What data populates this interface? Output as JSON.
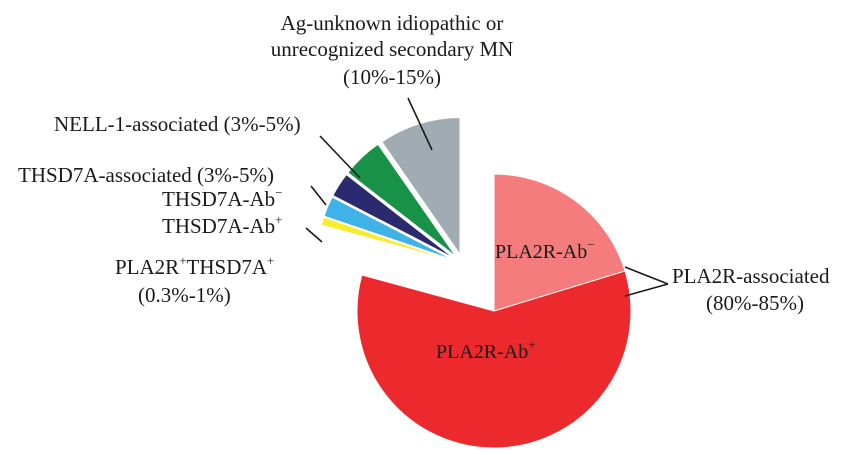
{
  "chart_data": {
    "type": "pie",
    "title": "",
    "slices": [
      {
        "key": "pla2r_ab_neg",
        "label": "PLA2R-Ab",
        "sup": "−",
        "value": 21,
        "color": "#f47c7c",
        "exploded": false
      },
      {
        "key": "pla2r_ab_pos",
        "label": "PLA2R-Ab",
        "sup": "+",
        "value": 61,
        "color": "#ec2a2e",
        "exploded": false
      },
      {
        "key": "pla2r_thsd7a_pos",
        "label": "PLA2R+THSD7A+",
        "value": 1,
        "color": "#f7ec2d",
        "exploded": true
      },
      {
        "key": "thsd7a_ab_pos",
        "label": "THSD7A-Ab",
        "sup": "+",
        "value": 2.5,
        "color": "#3fb3e8",
        "exploded": true
      },
      {
        "key": "thsd7a_ab_neg",
        "label": "THSD7A-Ab",
        "sup": "−",
        "value": 3,
        "color": "#2b2a6e",
        "exploded": true
      },
      {
        "key": "nell1",
        "label": "NELL-1-associated",
        "value": 5,
        "color": "#179247",
        "exploded": true
      },
      {
        "key": "ag_unknown",
        "label": "Ag-unknown idiopathic or unrecognized secondary MN",
        "value": 10,
        "color": "#a0abb2",
        "exploded": true
      }
    ],
    "annotations": {
      "ag_unknown_line1": "Ag-unknown idiopathic or",
      "ag_unknown_line2": "unrecognized secondary MN",
      "ag_unknown_range": "(10%-15%)",
      "nell1": "NELL-1-associated (3%-5%)",
      "thsd7a_group": "THSD7A-associated (3%-5%)",
      "thsd7a_ab_neg_text": "THSD7A-Ab",
      "thsd7a_ab_neg_sup": "−",
      "thsd7a_ab_pos_text": "THSD7A-Ab",
      "thsd7a_ab_pos_sup": "+",
      "double_text_a": "PLA2R",
      "double_sup_a": "+",
      "double_text_b": "THSD7A",
      "double_sup_b": "+",
      "double_range": "(0.3%-1%)",
      "pla2r_ab_neg_text": "PLA2R-Ab",
      "pla2r_ab_neg_sup": "−",
      "pla2r_ab_pos_text": "PLA2R-Ab",
      "pla2r_ab_pos_sup": "+",
      "pla2r_group_line1": "PLA2R-associated",
      "pla2r_group_line2": "(80%-85%)"
    },
    "legend": "none",
    "grid": false
  }
}
